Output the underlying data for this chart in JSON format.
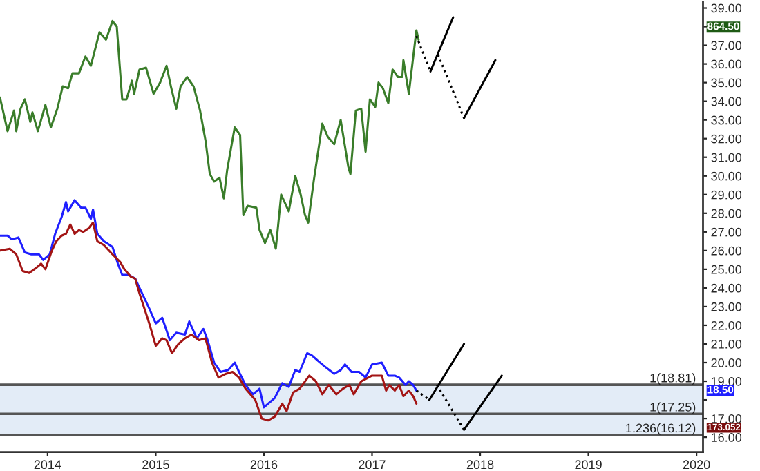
{
  "chart_data": {
    "type": "line",
    "xlim": [
      2013.56,
      2020.06
    ],
    "xticks": [
      2014,
      2015,
      2016,
      2017,
      2018,
      2019,
      2020
    ],
    "ylim": [
      15.2,
      39.3
    ],
    "yticks": [
      {
        "value": 16,
        "label": "16.00"
      },
      {
        "value": 17,
        "label": "17.00"
      },
      {
        "value": 18,
        "label": null
      },
      {
        "value": 19,
        "label": "19.00"
      },
      {
        "value": 20,
        "label": "20.00"
      },
      {
        "value": 21,
        "label": "21.00"
      },
      {
        "value": 22,
        "label": "22.00"
      },
      {
        "value": 23,
        "label": "23.00"
      },
      {
        "value": 24,
        "label": "24.00"
      },
      {
        "value": 25,
        "label": "25.00"
      },
      {
        "value": 26,
        "label": "26.00"
      },
      {
        "value": 27,
        "label": "27.00"
      },
      {
        "value": 28,
        "label": "28.00"
      },
      {
        "value": 29,
        "label": "29.00"
      },
      {
        "value": 30,
        "label": "30.00"
      },
      {
        "value": 31,
        "label": "31.00"
      },
      {
        "value": 32,
        "label": "32.00"
      },
      {
        "value": 33,
        "label": "33.00"
      },
      {
        "value": 34,
        "label": "34.00"
      },
      {
        "value": 35,
        "label": "35.00"
      },
      {
        "value": 36,
        "label": "36.00"
      },
      {
        "value": 37,
        "label": "37.00"
      },
      {
        "value": 38,
        "label": null
      },
      {
        "value": 39,
        "label": "39.00"
      }
    ],
    "grid": false,
    "legend": false,
    "marker": "none",
    "series": [
      {
        "color": "#3a7d2a",
        "line_style": "solid",
        "x": [
          2013.56,
          2013.63,
          2013.69,
          2013.71,
          2013.75,
          2013.79,
          2013.84,
          2013.86,
          2013.91,
          2013.98,
          2014.03,
          2014.09,
          2014.14,
          2014.19,
          2014.23,
          2014.29,
          2014.35,
          2014.4,
          2014.48,
          2014.54,
          2014.6,
          2014.64,
          2014.69,
          2014.73,
          2014.78,
          2014.8,
          2014.85,
          2014.91,
          2014.98,
          2015.04,
          2015.1,
          2015.14,
          2015.19,
          2015.23,
          2015.29,
          2015.35,
          2015.41,
          2015.46,
          2015.5,
          2015.54,
          2015.59,
          2015.63,
          2015.66,
          2015.73,
          2015.78,
          2015.81,
          2015.85,
          2015.93,
          2015.96,
          2016.01,
          2016.06,
          2016.11,
          2016.16,
          2016.23,
          2016.29,
          2016.34,
          2016.38,
          2016.41,
          2016.46,
          2016.54,
          2016.59,
          2016.65,
          2016.71,
          2016.78,
          2016.8,
          2016.85,
          2016.9,
          2016.94,
          2016.98,
          2017.03,
          2017.06,
          2017.1,
          2017.15,
          2017.19,
          2017.24,
          2017.28,
          2017.29,
          2017.34,
          2017.41,
          2017.43
        ],
        "values": [
          34.2,
          32.4,
          33.5,
          32.4,
          33.6,
          34.1,
          32.9,
          33.4,
          32.4,
          33.8,
          32.6,
          33.6,
          34.8,
          34.7,
          35.5,
          35.5,
          36.4,
          35.9,
          37.7,
          37.3,
          38.3,
          38.0,
          34.1,
          34.1,
          35.1,
          34.4,
          35.7,
          35.8,
          34.4,
          35.0,
          35.9,
          34.8,
          33.6,
          34.8,
          35.3,
          34.8,
          33.5,
          31.9,
          30.1,
          29.7,
          29.9,
          28.8,
          30.3,
          32.6,
          32.2,
          27.9,
          28.4,
          28.3,
          27.1,
          26.4,
          27.1,
          26.1,
          29.0,
          28.1,
          30.0,
          29.0,
          27.9,
          27.5,
          29.7,
          32.8,
          32.1,
          31.7,
          33.0,
          30.5,
          30.1,
          33.5,
          33.6,
          31.3,
          34.1,
          33.7,
          35.0,
          34.7,
          33.9,
          35.7,
          35.3,
          35.3,
          36.2,
          34.4,
          37.8,
          37.3
        ]
      },
      {
        "color": "#1f1fff",
        "line_style": "solid",
        "x": [
          2013.56,
          2013.63,
          2013.67,
          2013.73,
          2013.79,
          2013.85,
          2013.92,
          2013.96,
          2014.02,
          2014.07,
          2014.13,
          2014.17,
          2014.19,
          2014.25,
          2014.31,
          2014.35,
          2014.4,
          2014.42,
          2014.46,
          2014.52,
          2014.6,
          2014.65,
          2014.69,
          2014.75,
          2014.81,
          2014.85,
          2014.94,
          2015.0,
          2015.06,
          2015.13,
          2015.19,
          2015.27,
          2015.31,
          2015.38,
          2015.44,
          2015.48,
          2015.54,
          2015.6,
          2015.67,
          2015.73,
          2015.77,
          2015.83,
          2015.9,
          2015.96,
          2016.0,
          2016.04,
          2016.1,
          2016.17,
          2016.23,
          2016.29,
          2016.33,
          2016.4,
          2016.44,
          2016.5,
          2016.56,
          2016.65,
          2016.71,
          2016.75,
          2016.81,
          2016.88,
          2016.94,
          2017.0,
          2017.09,
          2017.15,
          2017.21,
          2017.25,
          2017.31,
          2017.34,
          2017.38,
          2017.41
        ],
        "values": [
          26.8,
          26.8,
          26.6,
          26.7,
          25.9,
          25.8,
          25.8,
          25.5,
          25.8,
          26.9,
          27.8,
          28.6,
          28.1,
          28.7,
          28.3,
          28.3,
          27.7,
          28.2,
          26.9,
          26.5,
          26.2,
          25.3,
          24.7,
          24.7,
          24.5,
          24.0,
          22.9,
          22.1,
          22.4,
          21.2,
          21.6,
          21.5,
          22.2,
          21.3,
          21.8,
          21.2,
          20.0,
          19.5,
          19.6,
          20.0,
          19.5,
          18.8,
          18.3,
          18.6,
          17.6,
          17.8,
          18.1,
          18.9,
          18.7,
          19.6,
          19.5,
          20.5,
          20.4,
          20.1,
          19.8,
          19.4,
          19.6,
          19.9,
          19.5,
          19.5,
          19.2,
          19.9,
          20.0,
          19.3,
          19.3,
          19.2,
          18.8,
          19.0,
          18.8,
          18.5
        ]
      },
      {
        "color": "#a31515",
        "line_style": "solid",
        "x": [
          2013.56,
          2013.65,
          2013.71,
          2013.77,
          2013.83,
          2013.9,
          2013.94,
          2013.98,
          2014.04,
          2014.08,
          2014.13,
          2014.17,
          2014.21,
          2014.25,
          2014.29,
          2014.33,
          2014.38,
          2014.42,
          2014.46,
          2014.52,
          2014.6,
          2014.67,
          2014.71,
          2014.77,
          2014.81,
          2014.85,
          2014.94,
          2015.0,
          2015.06,
          2015.1,
          2015.15,
          2015.21,
          2015.27,
          2015.33,
          2015.4,
          2015.46,
          2015.52,
          2015.58,
          2015.65,
          2015.71,
          2015.77,
          2015.83,
          2015.92,
          2015.98,
          2016.04,
          2016.1,
          2016.17,
          2016.21,
          2016.27,
          2016.33,
          2016.42,
          2016.48,
          2016.54,
          2016.6,
          2016.67,
          2016.73,
          2016.79,
          2016.83,
          2016.9,
          2017.0,
          2017.09,
          2017.13,
          2017.16,
          2017.21,
          2017.25,
          2017.29,
          2017.34,
          2017.38,
          2017.41
        ],
        "values": [
          26.0,
          26.1,
          25.8,
          24.9,
          24.8,
          25.1,
          25.3,
          25.0,
          26.0,
          26.5,
          26.8,
          26.9,
          27.4,
          26.9,
          27.1,
          27.0,
          27.2,
          27.5,
          26.5,
          26.3,
          25.8,
          25.4,
          25.0,
          24.6,
          24.5,
          23.7,
          22.1,
          20.9,
          21.3,
          21.2,
          20.5,
          21.0,
          21.3,
          21.5,
          21.2,
          21.3,
          20.0,
          19.2,
          19.4,
          19.5,
          19.2,
          18.6,
          18.0,
          17.0,
          16.9,
          17.1,
          17.8,
          17.4,
          18.4,
          18.6,
          19.3,
          19.0,
          18.3,
          18.8,
          18.3,
          18.6,
          18.8,
          18.3,
          19.0,
          19.3,
          19.3,
          18.5,
          18.8,
          18.5,
          18.8,
          18.2,
          18.5,
          18.2,
          17.8
        ]
      },
      {
        "color": "#000000",
        "line_style": "dotted",
        "x": [
          2017.41,
          2017.54
        ],
        "values": [
          37.5,
          35.6
        ]
      },
      {
        "color": "#000000",
        "line_style": "solid",
        "x": [
          2017.54,
          2017.75
        ],
        "values": [
          35.6,
          38.5
        ]
      },
      {
        "color": "#000000",
        "line_style": "dotted",
        "x": [
          2017.61,
          2017.85
        ],
        "values": [
          36.5,
          33.1
        ]
      },
      {
        "color": "#000000",
        "line_style": "solid",
        "x": [
          2017.85,
          2018.14
        ],
        "values": [
          33.1,
          36.2
        ]
      },
      {
        "color": "#000000",
        "line_style": "dotted",
        "x": [
          2017.41,
          2017.53
        ],
        "values": [
          18.5,
          18.0
        ]
      },
      {
        "color": "#000000",
        "line_style": "solid",
        "x": [
          2017.53,
          2017.85
        ],
        "values": [
          18.0,
          21.0
        ]
      },
      {
        "color": "#000000",
        "line_style": "dotted",
        "x": [
          2017.6,
          2017.85
        ],
        "values": [
          18.8,
          16.4
        ]
      },
      {
        "color": "#000000",
        "line_style": "solid",
        "x": [
          2017.85,
          2018.2
        ],
        "values": [
          16.4,
          19.3
        ]
      }
    ],
    "bands": [
      {
        "axis": "y",
        "from": 16.12,
        "to": 18.81,
        "color": "#e3ecf7"
      }
    ],
    "ref_lines": [
      {
        "axis": "y",
        "value": 18.81,
        "label": "1(18.81)",
        "color": "#555555"
      },
      {
        "axis": "y",
        "value": 17.25,
        "label": "1(17.25)",
        "color": "#555555"
      },
      {
        "axis": "y",
        "value": 16.12,
        "label": "1.236(16.12)",
        "color": "#555555"
      }
    ],
    "annotations": [
      "864.50",
      "18.50",
      "173.052"
    ]
  }
}
